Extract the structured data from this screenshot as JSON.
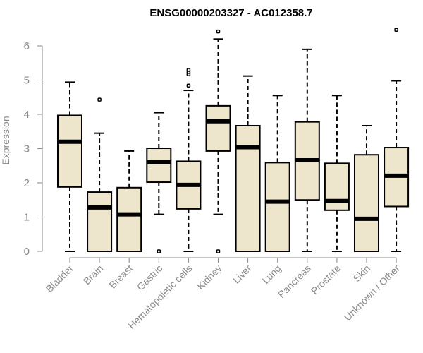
{
  "chart_data": {
    "type": "box",
    "title": "ENSG00000203327 - AC012358.7",
    "ylabel": "Expression",
    "xlabel": "",
    "ylim": [
      0,
      6.6
    ],
    "yticks": [
      0,
      1,
      2,
      3,
      4,
      5,
      6
    ],
    "yticks_text": [
      "0",
      "1",
      "2",
      "3",
      "4",
      "5",
      "6"
    ],
    "grid": false,
    "colors": {
      "box_fill": "#ede6cd",
      "box_stroke": "#000000",
      "axis": "#8a8a8a",
      "title": "#000000"
    },
    "categories": [
      "Bladder",
      "Brain",
      "Breast",
      "Gastric",
      "Hematopoietic cells",
      "Kidney",
      "Liver",
      "Lung",
      "Pancreas",
      "Prostate",
      "Skin",
      "Unknown / Other"
    ],
    "boxes": [
      {
        "category": "Bladder",
        "whisker_low": 0.0,
        "q1": 1.88,
        "median": 3.2,
        "q3": 3.97,
        "whisker_high": 4.94,
        "outliers": []
      },
      {
        "category": "Brain",
        "whisker_low": 0.0,
        "q1": 0.0,
        "median": 1.28,
        "q3": 1.73,
        "whisker_high": 3.45,
        "outliers": [
          4.43
        ]
      },
      {
        "category": "Breast",
        "whisker_low": 0.0,
        "q1": 0.0,
        "median": 1.08,
        "q3": 1.86,
        "whisker_high": 2.93,
        "outliers": []
      },
      {
        "category": "Gastric",
        "whisker_low": 1.08,
        "q1": 2.02,
        "median": 2.6,
        "q3": 3.01,
        "whisker_high": 4.05,
        "outliers": [
          0.0
        ]
      },
      {
        "category": "Hematopoietic cells",
        "whisker_low": 0.0,
        "q1": 1.24,
        "median": 1.94,
        "q3": 2.63,
        "whisker_high": 4.7,
        "outliers": [
          4.84,
          5.17,
          5.24,
          5.3
        ]
      },
      {
        "category": "Kidney",
        "whisker_low": 1.08,
        "q1": 2.93,
        "median": 3.8,
        "q3": 4.25,
        "whisker_high": 6.2,
        "outliers": [
          0.0,
          6.42
        ]
      },
      {
        "category": "Liver",
        "whisker_low": 0.0,
        "q1": 0.0,
        "median": 3.04,
        "q3": 3.67,
        "whisker_high": 5.12,
        "outliers": []
      },
      {
        "category": "Lung",
        "whisker_low": 0.0,
        "q1": 0.0,
        "median": 1.45,
        "q3": 2.59,
        "whisker_high": 4.55,
        "outliers": []
      },
      {
        "category": "Pancreas",
        "whisker_low": 0.0,
        "q1": 1.5,
        "median": 2.66,
        "q3": 3.78,
        "whisker_high": 5.9,
        "outliers": []
      },
      {
        "category": "Prostate",
        "whisker_low": 0.0,
        "q1": 1.2,
        "median": 1.47,
        "q3": 2.57,
        "whisker_high": 4.55,
        "outliers": []
      },
      {
        "category": "Skin",
        "whisker_low": 0.0,
        "q1": 0.0,
        "median": 0.95,
        "q3": 2.82,
        "whisker_high": 3.67,
        "outliers": []
      },
      {
        "category": "Unknown / Other",
        "whisker_low": 0.0,
        "q1": 1.31,
        "median": 2.21,
        "q3": 3.03,
        "whisker_high": 4.98,
        "outliers": [
          6.47
        ]
      }
    ]
  }
}
